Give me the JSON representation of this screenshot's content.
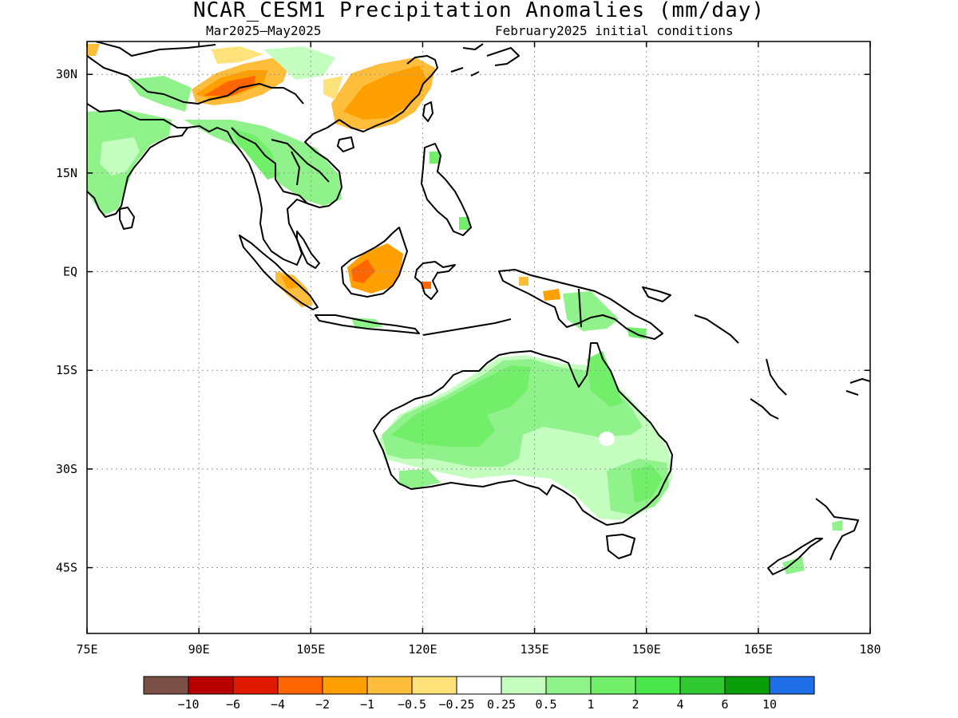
{
  "title": "NCAR_CESM1 Precipitation Anomalies (mm/day)",
  "period": "Mar2025–May2025",
  "init": "February2025 initial conditions",
  "map": {
    "lon_range": [
      75,
      180
    ],
    "lat_range": [
      -55,
      35
    ],
    "lat_ticks": [
      {
        "value": 30,
        "label": "30N"
      },
      {
        "value": 15,
        "label": "15N"
      },
      {
        "value": 0,
        "label": "EQ"
      },
      {
        "value": -15,
        "label": "15S"
      },
      {
        "value": -30,
        "label": "30S"
      },
      {
        "value": -45,
        "label": "45S"
      }
    ],
    "lon_ticks": [
      {
        "value": 75,
        "label": "75E"
      },
      {
        "value": 90,
        "label": "90E"
      },
      {
        "value": 105,
        "label": "105E"
      },
      {
        "value": 120,
        "label": "120E"
      },
      {
        "value": 135,
        "label": "135E"
      },
      {
        "value": 150,
        "label": "150E"
      },
      {
        "value": 165,
        "label": "165E"
      },
      {
        "value": 180,
        "label": "180"
      }
    ],
    "grid": "dotted"
  },
  "colorbar": {
    "colors": [
      "#7a4f45",
      "#b80000",
      "#e01a00",
      "#ff6600",
      "#ffa000",
      "#ffbd3c",
      "#ffe27a",
      "#ffffff",
      "#c4ffc0",
      "#90f28a",
      "#72ee6a",
      "#4ae74a",
      "#31c931",
      "#0a9e0a",
      "#1e6ee8"
    ],
    "labels": [
      "−10",
      "−6",
      "−4",
      "−2",
      "−1",
      "−0.5",
      "−0.25",
      "0.25",
      "0.5",
      "1",
      "2",
      "4",
      "6",
      "10"
    ]
  }
}
